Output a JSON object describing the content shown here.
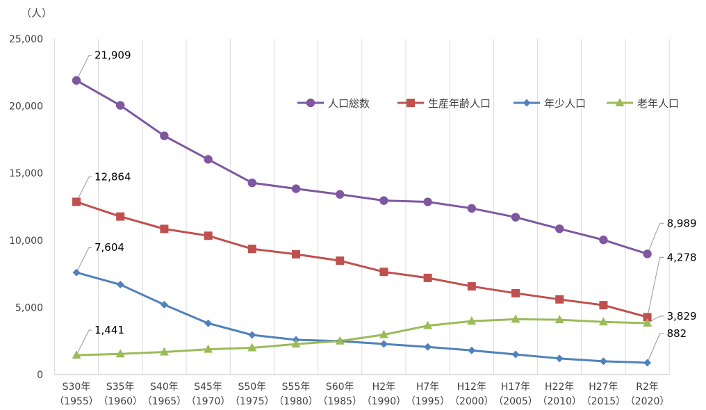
{
  "chart_data": {
    "type": "line",
    "y_unit_label": "（人）",
    "ylim": [
      0,
      25000
    ],
    "yticks": [
      0,
      5000,
      10000,
      15000,
      20000,
      25000
    ],
    "ytick_labels": [
      "0",
      "5,000",
      "10,000",
      "15,000",
      "20,000",
      "25,000"
    ],
    "grid": "vertical",
    "legend_position": "top-right",
    "categories": [
      {
        "line1": "S30年",
        "line2": "（1955）"
      },
      {
        "line1": "S35年",
        "line2": "（1960）"
      },
      {
        "line1": "S40年",
        "line2": "（1965）"
      },
      {
        "line1": "S45年",
        "line2": "（1970）"
      },
      {
        "line1": "S50年",
        "line2": "（1975）"
      },
      {
        "line1": "S55年",
        "line2": "（1980）"
      },
      {
        "line1": "S60年",
        "line2": "（1985）"
      },
      {
        "line1": "H2年",
        "line2": "（1990）"
      },
      {
        "line1": "H7年",
        "line2": "（1995）"
      },
      {
        "line1": "H12年",
        "line2": "（2000）"
      },
      {
        "line1": "H17年",
        "line2": "（2005）"
      },
      {
        "line1": "H22年",
        "line2": "（2010）"
      },
      {
        "line1": "H27年",
        "line2": "（2015）"
      },
      {
        "line1": "R2年",
        "line2": "（2020）"
      }
    ],
    "series": [
      {
        "name": "人口総数",
        "color": "#7E57A0",
        "marker": "circle",
        "values": [
          21909,
          20050,
          17780,
          16030,
          14280,
          13840,
          13420,
          12960,
          12860,
          12380,
          11720,
          10860,
          10030,
          8989
        ],
        "labels": {
          "first": "21,909",
          "last": "8,989"
        }
      },
      {
        "name": "生産年齢人口",
        "color": "#C0504D",
        "marker": "square",
        "values": [
          12864,
          11770,
          10850,
          10340,
          9360,
          8960,
          8480,
          7650,
          7200,
          6570,
          6060,
          5600,
          5170,
          4278
        ],
        "labels": {
          "first": "12,864",
          "last": "4,278"
        }
      },
      {
        "name": "年少人口",
        "color": "#4F81BD",
        "marker": "diamond",
        "values": [
          7604,
          6700,
          5200,
          3820,
          2950,
          2590,
          2490,
          2280,
          2060,
          1800,
          1500,
          1200,
          990,
          882
        ],
        "labels": {
          "first": "7,604",
          "last": "882"
        }
      },
      {
        "name": "老年人口",
        "color": "#9BBB59",
        "marker": "triangle",
        "values": [
          1441,
          1540,
          1680,
          1880,
          1990,
          2270,
          2500,
          2970,
          3640,
          3980,
          4120,
          4080,
          3920,
          3829
        ],
        "labels": {
          "first": "1,441",
          "last": "3,829"
        }
      }
    ]
  }
}
